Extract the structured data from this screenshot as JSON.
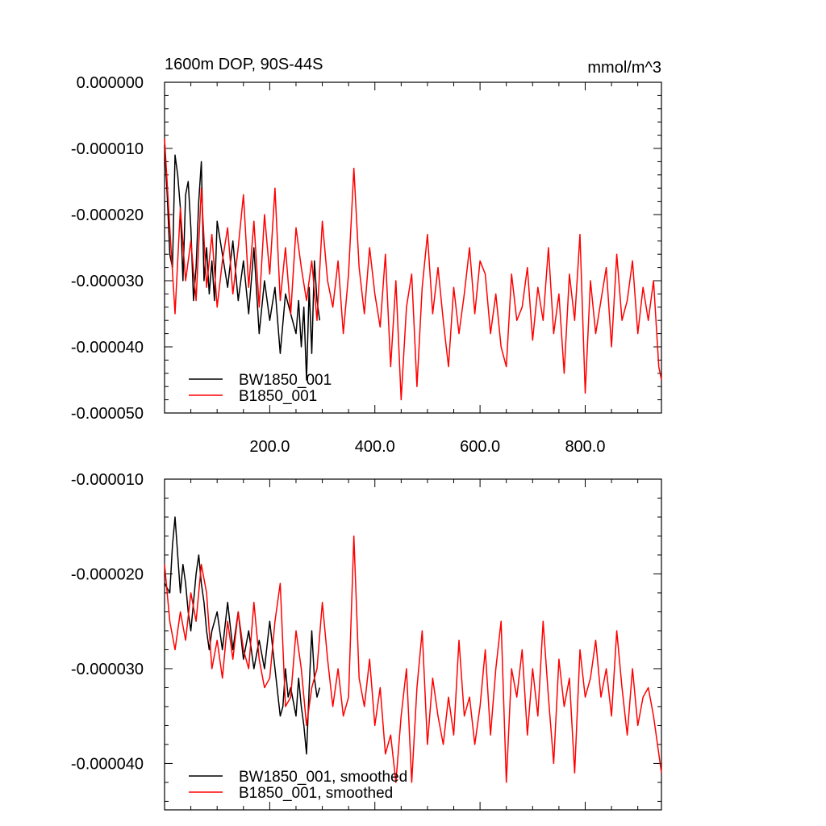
{
  "chart_data": [
    {
      "type": "line",
      "title": "1600m DOP, 90S-44S",
      "units": "mmol/m^3",
      "xlim": [
        0,
        945
      ],
      "ylim": [
        -5e-05,
        0.0
      ],
      "x_ticks": [
        "200.0",
        "400.0",
        "600.0",
        "800.0"
      ],
      "y_ticks": [
        "0.000000",
        "-0.000010",
        "-0.000020",
        "-0.000030",
        "-0.000040",
        "-0.000050"
      ],
      "series": [
        {
          "name": "BW1850_001",
          "color": "#000000",
          "x": [
            0,
            5,
            10,
            15,
            20,
            25,
            30,
            35,
            40,
            45,
            50,
            55,
            60,
            65,
            70,
            75,
            80,
            85,
            90,
            95,
            100,
            110,
            120,
            130,
            140,
            150,
            160,
            170,
            180,
            190,
            200,
            210,
            220,
            230,
            240,
            250,
            255,
            260,
            265,
            270,
            275,
            280,
            285,
            290,
            295
          ],
          "values": [
            -9.5e-06,
            -1.7e-05,
            -2.6e-05,
            -2.8e-05,
            -1.1e-05,
            -1.4e-05,
            -1.9e-05,
            -3e-05,
            -1.7e-05,
            -1.5e-05,
            -2.2e-05,
            -3.3e-05,
            -2.8e-05,
            -1.8e-05,
            -1.2e-05,
            -3e-05,
            -2.5e-05,
            -3.2e-05,
            -2.7e-05,
            -3.3e-05,
            -2.1e-05,
            -2.6e-05,
            -3.1e-05,
            -2.4e-05,
            -3.3e-05,
            -2.7e-05,
            -3.5e-05,
            -2.5e-05,
            -3.8e-05,
            -3e-05,
            -3.6e-05,
            -3.1e-05,
            -4.1e-05,
            -3.2e-05,
            -3.5e-05,
            -3.8e-05,
            -3.3e-05,
            -4e-05,
            -3.4e-05,
            -4.5e-05,
            -3.1e-05,
            -4.1e-05,
            -2.7e-05,
            -3.3e-05,
            -3.6e-05
          ]
        },
        {
          "name": "B1850_001",
          "color": "#ff0000",
          "x": [
            0,
            10,
            20,
            30,
            40,
            50,
            60,
            70,
            80,
            90,
            100,
            110,
            120,
            130,
            140,
            150,
            160,
            170,
            180,
            190,
            200,
            210,
            220,
            230,
            240,
            250,
            260,
            270,
            280,
            290,
            300,
            310,
            320,
            330,
            340,
            350,
            360,
            370,
            380,
            390,
            400,
            410,
            420,
            430,
            440,
            450,
            460,
            470,
            480,
            490,
            500,
            510,
            520,
            530,
            540,
            550,
            560,
            570,
            580,
            590,
            600,
            610,
            620,
            630,
            640,
            650,
            660,
            670,
            680,
            690,
            700,
            710,
            720,
            730,
            740,
            750,
            760,
            770,
            780,
            790,
            800,
            810,
            820,
            830,
            840,
            850,
            860,
            870,
            880,
            890,
            900,
            910,
            920,
            930,
            940,
            945
          ],
          "values": [
            -8.5e-06,
            -2.2e-05,
            -3.5e-05,
            -1.9e-05,
            -3e-05,
            -2.4e-05,
            -3.3e-05,
            -1.6e-05,
            -3.1e-05,
            -2.3e-05,
            -3.4e-05,
            -2.7e-05,
            -2.2e-05,
            -3.2e-05,
            -2.5e-05,
            -1.7e-05,
            -3.1e-05,
            -2.1e-05,
            -3.4e-05,
            -2e-05,
            -2.9e-05,
            -1.6e-05,
            -3.3e-05,
            -2.5e-05,
            -3.5e-05,
            -2.2e-05,
            -2.8e-05,
            -3.3e-05,
            -2.7e-05,
            -3.6e-05,
            -2.1e-05,
            -3e-05,
            -3.4e-05,
            -2.7e-05,
            -3.8e-05,
            -2.9e-05,
            -1.3e-05,
            -2.8e-05,
            -3.5e-05,
            -2.5e-05,
            -3.2e-05,
            -3.7e-05,
            -2.6e-05,
            -4.3e-05,
            -3e-05,
            -4.8e-05,
            -3.4e-05,
            -2.9e-05,
            -4.6e-05,
            -3.1e-05,
            -2.3e-05,
            -3.5e-05,
            -2.8e-05,
            -3.6e-05,
            -4.3e-05,
            -3.1e-05,
            -3.8e-05,
            -3.2e-05,
            -2.5e-05,
            -3.5e-05,
            -2.7e-05,
            -2.9e-05,
            -3.8e-05,
            -3.2e-05,
            -4e-05,
            -4.3e-05,
            -2.9e-05,
            -3.6e-05,
            -3.4e-05,
            -2.8e-05,
            -3.9e-05,
            -3.1e-05,
            -3.6e-05,
            -2.5e-05,
            -3.8e-05,
            -3.2e-05,
            -4.4e-05,
            -2.9e-05,
            -3.6e-05,
            -2.3e-05,
            -4.7e-05,
            -3e-05,
            -3.8e-05,
            -3.3e-05,
            -2.8e-05,
            -4e-05,
            -2.6e-05,
            -3.6e-05,
            -3.3e-05,
            -2.7e-05,
            -3.8e-05,
            -3.1e-05,
            -3.6e-05,
            -3e-05,
            -4.3e-05,
            -4.5e-05
          ]
        }
      ],
      "legend_position": "lower-left",
      "grid": false
    },
    {
      "type": "line",
      "title": "",
      "xlim": [
        0,
        945
      ],
      "ylim": [
        -4.49e-05,
        -1e-05
      ],
      "x_ticks": [],
      "y_ticks": [
        "-0.000010",
        "-0.000020",
        "-0.000030",
        "-0.000040"
      ],
      "series": [
        {
          "name": "BW1850_001, smoothed",
          "color": "#000000",
          "x": [
            0,
            10,
            15,
            20,
            25,
            30,
            35,
            40,
            45,
            50,
            55,
            60,
            65,
            70,
            75,
            80,
            85,
            90,
            100,
            110,
            120,
            130,
            140,
            150,
            160,
            170,
            180,
            190,
            200,
            210,
            220,
            225,
            230,
            235,
            240,
            250,
            255,
            260,
            265,
            270,
            275,
            280,
            285,
            290,
            295
          ],
          "values": [
            -2.1e-05,
            -2.2e-05,
            -1.7e-05,
            -1.4e-05,
            -1.8e-05,
            -2.2e-05,
            -1.9e-05,
            -2.1e-05,
            -2.4e-05,
            -2.6e-05,
            -2.3e-05,
            -2e-05,
            -1.8e-05,
            -2.1e-05,
            -2.3e-05,
            -2.6e-05,
            -2.8e-05,
            -2.6e-05,
            -2.4e-05,
            -2.8e-05,
            -2.3e-05,
            -2.8e-05,
            -2.4e-05,
            -2.9e-05,
            -2.6e-05,
            -3e-05,
            -2.7e-05,
            -3e-05,
            -2.5e-05,
            -3e-05,
            -3.5e-05,
            -3.4e-05,
            -3e-05,
            -3.3e-05,
            -3.2e-05,
            -3.5e-05,
            -3.1e-05,
            -3.4e-05,
            -3.6e-05,
            -3.9e-05,
            -3.2e-05,
            -2.6e-05,
            -3.1e-05,
            -3.3e-05,
            -3.2e-05
          ]
        },
        {
          "name": "B1850_001, smoothed",
          "color": "#ff0000",
          "x": [
            0,
            10,
            20,
            30,
            40,
            50,
            60,
            70,
            80,
            90,
            100,
            110,
            120,
            130,
            140,
            150,
            160,
            170,
            180,
            190,
            200,
            210,
            220,
            230,
            240,
            250,
            260,
            270,
            280,
            290,
            300,
            310,
            320,
            330,
            340,
            350,
            360,
            370,
            380,
            390,
            400,
            410,
            420,
            430,
            440,
            450,
            460,
            470,
            480,
            490,
            500,
            510,
            520,
            530,
            540,
            550,
            560,
            570,
            580,
            590,
            600,
            610,
            620,
            630,
            640,
            650,
            660,
            670,
            680,
            690,
            700,
            710,
            720,
            730,
            740,
            750,
            760,
            770,
            780,
            790,
            800,
            810,
            820,
            830,
            840,
            850,
            860,
            870,
            880,
            890,
            900,
            910,
            920,
            930,
            945
          ],
          "values": [
            -1.9e-05,
            -2.5e-05,
            -2.8e-05,
            -2.4e-05,
            -2.7e-05,
            -2.2e-05,
            -2.5e-05,
            -1.9e-05,
            -2.2e-05,
            -3e-05,
            -2.7e-05,
            -3.1e-05,
            -2.5e-05,
            -2.9e-05,
            -2.4e-05,
            -2.8e-05,
            -3e-05,
            -2.3e-05,
            -2.9e-05,
            -3.2e-05,
            -3.1e-05,
            -2.5e-05,
            -2.1e-05,
            -3.4e-05,
            -3.3e-05,
            -2.6e-05,
            -3e-05,
            -3.6e-05,
            -3.2e-05,
            -3e-05,
            -2.3e-05,
            -2.9e-05,
            -3.4e-05,
            -3e-05,
            -3.5e-05,
            -3.3e-05,
            -1.6e-05,
            -3.1e-05,
            -3.4e-05,
            -2.9e-05,
            -3.6e-05,
            -3.2e-05,
            -3.9e-05,
            -3.7e-05,
            -4.2e-05,
            -3.5e-05,
            -3e-05,
            -4.2e-05,
            -3.2e-05,
            -2.6e-05,
            -3.8e-05,
            -3.1e-05,
            -3.5e-05,
            -3.8e-05,
            -3.3e-05,
            -3.7e-05,
            -2.7e-05,
            -3.5e-05,
            -3.3e-05,
            -3.8e-05,
            -3.4e-05,
            -2.8e-05,
            -3.7e-05,
            -3e-05,
            -2.5e-05,
            -4.2e-05,
            -3e-05,
            -3.3e-05,
            -2.8e-05,
            -3.7e-05,
            -3e-05,
            -3.5e-05,
            -2.5e-05,
            -3.3e-05,
            -4e-05,
            -2.9e-05,
            -3.4e-05,
            -3.1e-05,
            -4.1e-05,
            -2.8e-05,
            -3.3e-05,
            -3.1e-05,
            -2.7e-05,
            -3.3e-05,
            -3e-05,
            -3.5e-05,
            -2.6e-05,
            -3.2e-05,
            -3.7e-05,
            -3e-05,
            -3.6e-05,
            -3.3e-05,
            -3.2e-05,
            -3.5e-05,
            -4.1e-05
          ]
        }
      ],
      "legend_position": "lower-left",
      "grid": false
    }
  ]
}
